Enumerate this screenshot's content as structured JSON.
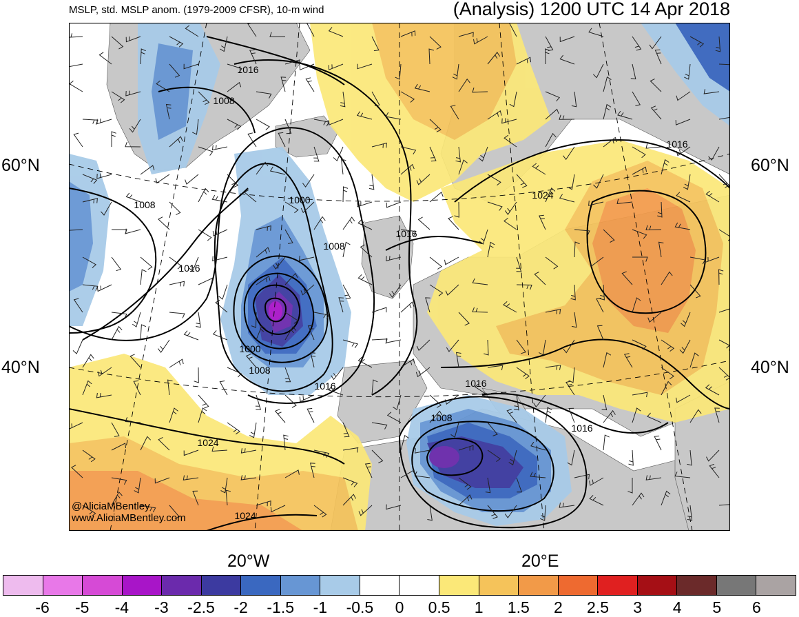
{
  "header": {
    "left_title": "MSLP, std. MSLP anom. (1979-2009 CFSR), 10-m wind",
    "right_title": "(Analysis) 1200 UTC 14 Apr 2018"
  },
  "axes": {
    "lat_60": "60°N",
    "lat_40": "40°N",
    "lon_20w": "20°W",
    "lon_20e": "20°E"
  },
  "credits": {
    "line1": "@AliciaMBentley",
    "line2": "www.AliciaMBentley.com"
  },
  "isobar_labels": [
    "1016",
    "1008",
    "1008",
    "1000",
    "1008",
    "1016",
    "1016",
    "1000",
    "1008",
    "1016",
    "1024",
    "1024",
    "1016",
    "1024",
    "1008",
    "1016",
    "1016"
  ],
  "colorbar": {
    "labels": [
      "-6",
      "-5",
      "-4",
      "-3",
      "-2.5",
      "-2",
      "-1.5",
      "-1",
      "-0.5",
      "0",
      "0.5",
      "1",
      "1.5",
      "2",
      "2.5",
      "3",
      "4",
      "5",
      "6"
    ],
    "colors": [
      "#eebbee",
      "#e878e8",
      "#d64ad6",
      "#a815c8",
      "#6b2aac",
      "#3c3aa0",
      "#3a68c0",
      "#6796d4",
      "#a8cbe8",
      "#ffffff",
      "#ffffff",
      "#fbe878",
      "#f5c35a",
      "#f29a48",
      "#ee6a30",
      "#e02020",
      "#a50f15",
      "#6b2a2a",
      "#777777",
      "#aaa3a3"
    ]
  },
  "map_colors": {
    "land": "#c8c8c8",
    "ocean": "#ffffff",
    "pos_1": "#fbe878",
    "pos_2": "#f5c35a",
    "pos_3": "#f29a48",
    "neg_1": "#a8cbe8",
    "neg_2": "#6796d4",
    "neg_3": "#3a68c0",
    "neg_4": "#3c3aa0",
    "neg_5": "#6b2aac",
    "neg_6": "#a815c8"
  }
}
